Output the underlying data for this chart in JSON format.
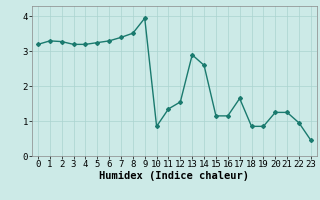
{
  "x": [
    0,
    1,
    2,
    3,
    4,
    5,
    6,
    7,
    8,
    9,
    10,
    11,
    12,
    13,
    14,
    15,
    16,
    17,
    18,
    19,
    20,
    21,
    22,
    23
  ],
  "y": [
    3.2,
    3.3,
    3.28,
    3.2,
    3.2,
    3.25,
    3.3,
    3.4,
    3.52,
    3.95,
    0.85,
    1.35,
    1.55,
    2.9,
    2.6,
    1.15,
    1.15,
    1.65,
    0.85,
    0.85,
    1.25,
    1.25,
    0.95,
    0.45
  ],
  "line_color": "#1a7a6e",
  "marker": "D",
  "marker_size": 2.0,
  "bg_color": "#cceae7",
  "grid_color": "#aad4d0",
  "xlabel": "Humidex (Indice chaleur)",
  "xlim": [
    -0.5,
    23.5
  ],
  "ylim": [
    0,
    4.3
  ],
  "yticks": [
    0,
    1,
    2,
    3,
    4
  ],
  "xticks": [
    0,
    1,
    2,
    3,
    4,
    5,
    6,
    7,
    8,
    9,
    10,
    11,
    12,
    13,
    14,
    15,
    16,
    17,
    18,
    19,
    20,
    21,
    22,
    23
  ],
  "tick_fontsize": 6.5,
  "xlabel_fontsize": 7.5,
  "line_width": 1.0
}
